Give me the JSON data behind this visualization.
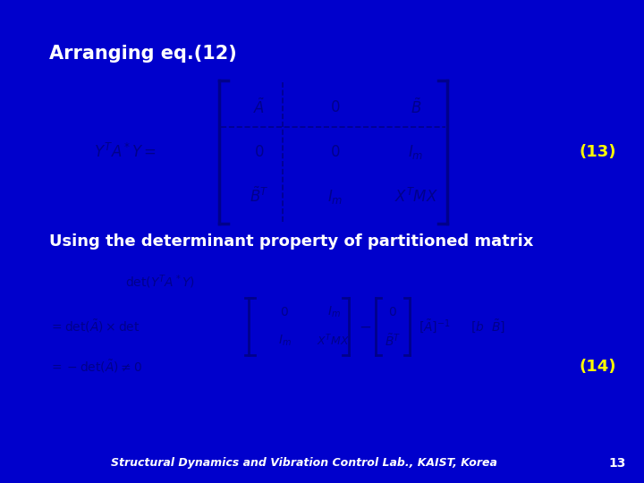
{
  "background_color": "#0000CC",
  "title_text": "Arranging eq.(12)",
  "title_color": "#FFFFFF",
  "title_fontsize": 15,
  "math_color": "#000080",
  "white_color": "#FFFFFF",
  "yellow_color": "#FFFF00",
  "eq13_label": "(13)",
  "eq14_label": "(14)",
  "footer_text": "Structural Dynamics and Vibration Control Lab., KAIST, Korea",
  "footer_page": "13",
  "section2_text": "Using the determinant property of partitioned matrix",
  "eq_color": "#000033",
  "bracket_color": "#000080"
}
